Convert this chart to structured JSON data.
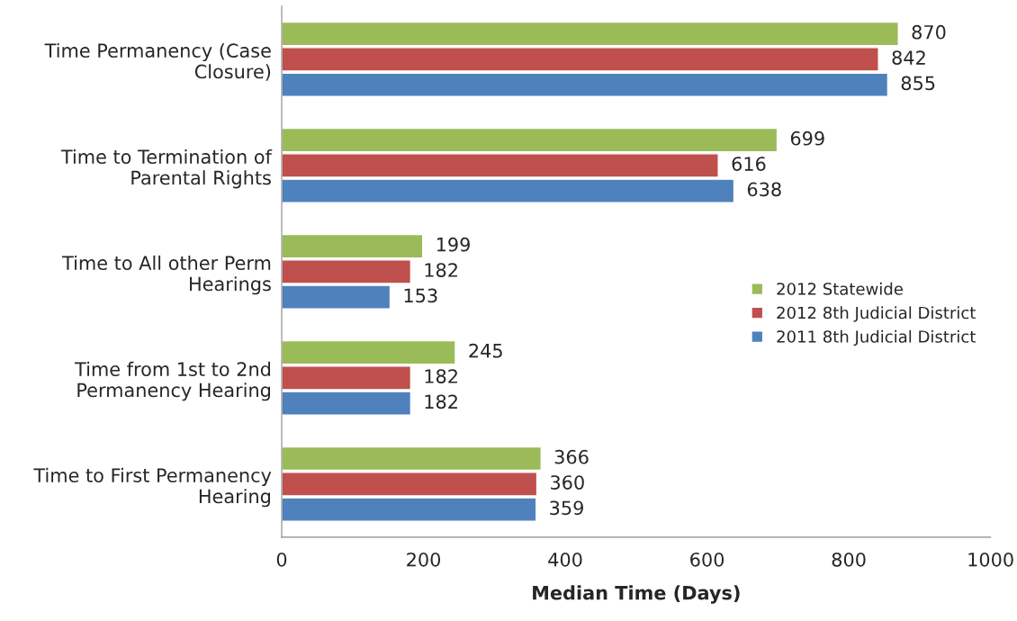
{
  "chart_data": {
    "type": "bar",
    "orientation": "horizontal",
    "xlabel": "Median Time (Days)",
    "categories": [
      "Time Permanency (Case\nClosure)",
      "Time to Termination of\nParental Rights",
      "Time to All other Perm\nHearings",
      "Time from 1st to 2nd\nPermanency Hearing",
      "Time to First Permanency\nHearing"
    ],
    "series": [
      {
        "name": "2012 Statewide",
        "color": "#9bbb59",
        "values": [
          870,
          699,
          199,
          245,
          366
        ]
      },
      {
        "name": "2012 8th Judicial District",
        "color": "#c0504d",
        "values": [
          842,
          616,
          182,
          182,
          360
        ]
      },
      {
        "name": "2011 8th Judicial District",
        "color": "#4f81bd",
        "values": [
          855,
          638,
          153,
          182,
          359
        ]
      }
    ],
    "xlim": [
      0,
      1000
    ],
    "xticks": [
      0,
      200,
      400,
      600,
      800,
      1000
    ],
    "data_labels": true,
    "grid": false,
    "legend": "right"
  }
}
